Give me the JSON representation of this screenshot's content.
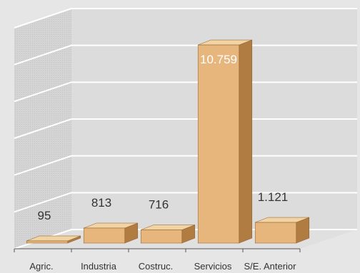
{
  "chart_data": {
    "type": "bar",
    "categories": [
      "Agric.",
      "Industria",
      "Costruc.",
      "Servicios",
      "S/E. Anterior"
    ],
    "values": [
      95,
      813,
      716,
      10759,
      1121
    ],
    "data_labels": [
      "95",
      "813",
      "716",
      "10.759",
      "1.121"
    ],
    "title": "",
    "xlabel": "",
    "ylabel": "",
    "ylim": [
      0,
      12000
    ],
    "grid": true,
    "legend": "none",
    "three_d": true
  },
  "colors": {
    "background": "#e6e6e6",
    "plot_back_wall": "#dcdcdc",
    "side_wall": "#d2d2d2",
    "floor": "#e0e0e0",
    "grid_line": "#ffffff",
    "bar_front": "#e6b67c",
    "bar_top": "#f2d3a4",
    "bar_side": "#b07c42",
    "bar_edge": "#8a5a28"
  }
}
